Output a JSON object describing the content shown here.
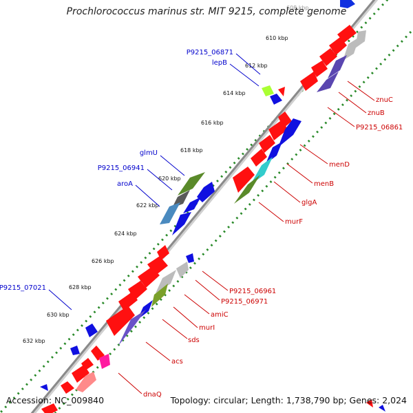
{
  "map": {
    "title": "Prochlorococcus marinus str. MIT 9215, complete genome",
    "accession": "Accession: NC_009840",
    "summary": "Topology: circular; Length: 1,738,790 bp; Genes: 2,024",
    "ticks": [
      "608 kbp",
      "610 kbp",
      "612 kbp",
      "614 kbp",
      "616 kbp",
      "618 kbp",
      "620 kbp",
      "622 kbp",
      "624 kbp",
      "626 kbp",
      "628 kbp",
      "630 kbp",
      "632 kbp"
    ],
    "left_labels": [
      "P9215_06871",
      "lepB",
      "glmU",
      "P9215_06941",
      "aroA",
      "P9215_07021"
    ],
    "right_labels": [
      "znuC",
      "znuB",
      "P9215_06861",
      "menD",
      "menB",
      "glgA",
      "murF",
      "P9215_06961",
      "P9215_06971",
      "amiC",
      "murI",
      "sds",
      "acs",
      "dnaQ"
    ],
    "colors": {
      "forward": "#ff1010",
      "reverse": "#0a0ae0",
      "left_label": "#0000cc",
      "right_label": "#cc0000",
      "backbone": "#8a8a8a",
      "ticks": "#2a8a2a"
    }
  }
}
